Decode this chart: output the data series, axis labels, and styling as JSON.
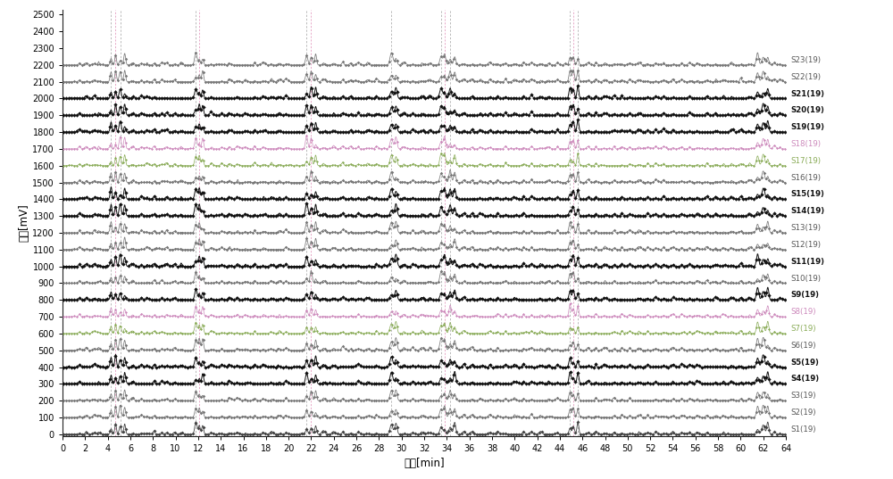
{
  "xlabel": "时间[min]",
  "ylabel": "信号[mV]",
  "xlim": [
    0,
    64
  ],
  "ylim": [
    -10,
    2530
  ],
  "yticks": [
    0,
    100,
    200,
    300,
    400,
    500,
    600,
    700,
    800,
    900,
    1000,
    1100,
    1200,
    1300,
    1400,
    1500,
    1600,
    1700,
    1800,
    1900,
    2000,
    2100,
    2200,
    2300,
    2400,
    2500
  ],
  "xticks": [
    0,
    2,
    4,
    6,
    8,
    10,
    12,
    14,
    16,
    18,
    20,
    22,
    24,
    26,
    28,
    30,
    32,
    34,
    36,
    38,
    40,
    42,
    44,
    46,
    48,
    50,
    52,
    54,
    56,
    58,
    60,
    62,
    64
  ],
  "samples": [
    "S1(19)",
    "S2(19)",
    "S3(19)",
    "S4(19)",
    "S5(19)",
    "S6(19)",
    "S7(19)",
    "S8(19)",
    "S9(19)",
    "S10(19)",
    "S11(19)",
    "S12(19)",
    "S13(19)",
    "S14(19)",
    "S15(19)",
    "S16(19)",
    "S17(19)",
    "S18(19)",
    "S19(19)",
    "S20(19)",
    "S21(19)",
    "S22(19)",
    "S23(19)"
  ],
  "sample_offsets": [
    0,
    100,
    200,
    300,
    400,
    500,
    600,
    700,
    800,
    900,
    1000,
    1100,
    1200,
    1300,
    1400,
    1500,
    1600,
    1700,
    1800,
    1900,
    2000,
    2100,
    2200
  ],
  "bold_samples": [
    "S4(19)",
    "S5(19)",
    "S9(19)",
    "S11(19)",
    "S14(19)",
    "S15(19)",
    "S19(19)",
    "S20(19)",
    "S21(19)"
  ],
  "pink_samples": [
    "S8(19)",
    "S18(19)"
  ],
  "green_samples": [
    "S7(19)",
    "S17(19)"
  ],
  "gray_samples": [
    "S2(19)",
    "S3(19)",
    "S6(19)",
    "S10(19)",
    "S12(19)",
    "S13(19)",
    "S16(19)",
    "S22(19)",
    "S23(19)"
  ],
  "dashed_gray": [
    4.3,
    5.1,
    11.8,
    21.6,
    29.1,
    33.5,
    34.3,
    44.9,
    45.6
  ],
  "dashed_pink": [
    4.7,
    12.1,
    22.0,
    33.8,
    45.2
  ],
  "figsize": [
    10.0,
    5.37
  ],
  "dpi": 100,
  "bg_color": "#ffffff",
  "peak_scale": 60
}
